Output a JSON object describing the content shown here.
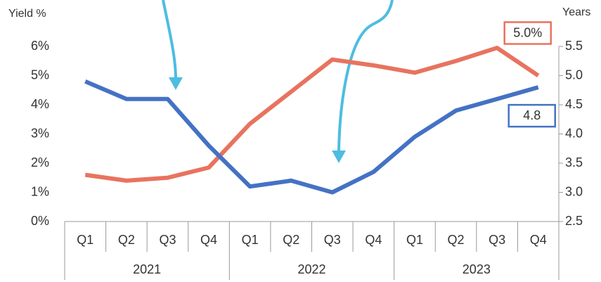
{
  "chart_data": {
    "type": "line",
    "y_label": "Yield %",
    "y2_label": "Years",
    "categories": [
      "Q1",
      "Q2",
      "Q3",
      "Q4",
      "Q1",
      "Q2",
      "Q3",
      "Q4",
      "Q1",
      "Q2",
      "Q3",
      "Q4"
    ],
    "category_groups": [
      "2021",
      "2022",
      "2023"
    ],
    "series": [
      {
        "color": "#e8735f",
        "values": [
          1.6,
          1.4,
          1.5,
          1.85,
          3.35,
          4.45,
          5.55,
          5.35,
          5.1,
          5.5,
          5.95,
          5.0
        ],
        "value_labels": [
          null,
          null,
          null,
          null,
          null,
          null,
          null,
          null,
          null,
          null,
          null,
          "5.0%"
        ]
      },
      {
        "color": "#4472c4",
        "axis": "y2",
        "values": [
          4.9,
          4.6,
          4.6,
          3.8,
          3.1,
          3.2,
          3.0,
          3.35,
          3.95,
          4.4,
          4.6,
          4.8
        ],
        "value_labels": [
          null,
          null,
          null,
          null,
          null,
          null,
          null,
          null,
          null,
          null,
          null,
          "4.8"
        ]
      }
    ],
    "ylim": [
      0,
      6
    ],
    "yticks": [
      {
        "value": 0,
        "label": "0%"
      },
      {
        "value": 1,
        "label": "1%"
      },
      {
        "value": 2,
        "label": "2%"
      },
      {
        "value": 3,
        "label": "3%"
      },
      {
        "value": 4,
        "label": "4%"
      },
      {
        "value": 5,
        "label": "5%"
      },
      {
        "value": 6,
        "label": "6%"
      }
    ],
    "y2lim": [
      2.5,
      5.5
    ],
    "y2ticks": [
      2.5,
      {
        "value": 3,
        "label": "3.0"
      },
      3.5,
      {
        "value": 4,
        "label": "4.0"
      },
      4.5,
      {
        "value": 5,
        "label": "5.0"
      },
      5.5
    ]
  }
}
